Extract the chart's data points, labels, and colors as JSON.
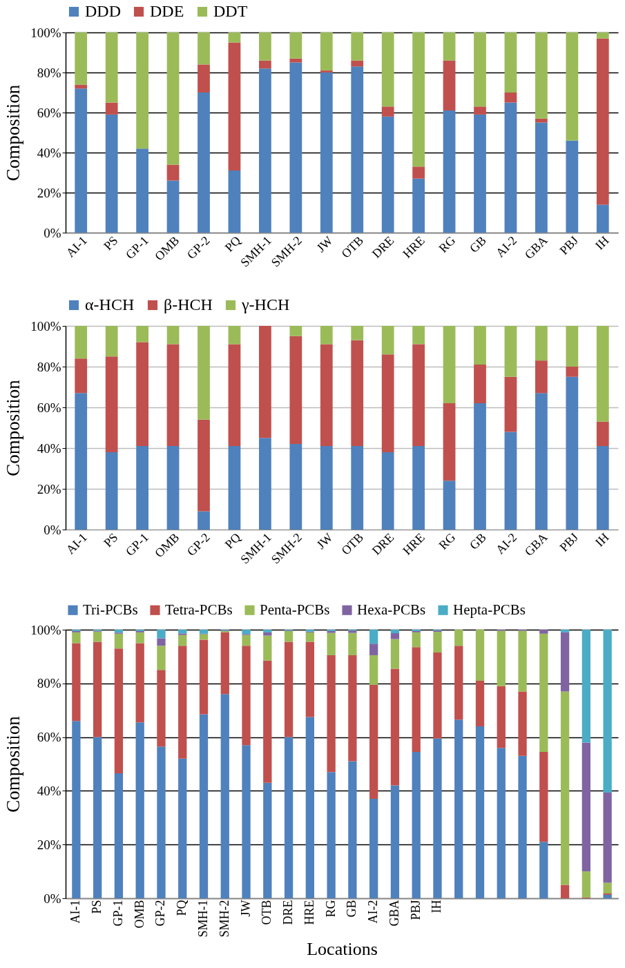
{
  "chart_data": [
    {
      "type": "bar",
      "stacked": true,
      "ylabel": "Composition",
      "legend": "top",
      "grid": "y",
      "categories": [
        "AI-1",
        "PS",
        "GP-1",
        "OMB",
        "GP-2",
        "PQ",
        "SMH-1",
        "SMH-2",
        "JW",
        "OTB",
        "DRE",
        "HRE",
        "RG",
        "GB",
        "AI-2",
        "GBA",
        "PBJ",
        "IH"
      ],
      "ylim": [
        0,
        100
      ],
      "yticks": [
        {
          "value": 0,
          "label": "0%"
        },
        {
          "value": 20,
          "label": "20%"
        },
        {
          "value": 40,
          "label": "40%"
        },
        {
          "value": 60,
          "label": "60%"
        },
        {
          "value": 80,
          "label": "80%"
        },
        {
          "value": 100,
          "label": "100%"
        }
      ],
      "series": [
        {
          "name": "DDD",
          "color": "#4f81bd",
          "values": [
            72,
            59,
            42,
            26,
            70,
            31,
            82,
            85,
            80,
            83,
            58,
            27,
            61,
            59,
            65,
            55,
            46,
            14
          ]
        },
        {
          "name": "DDE",
          "color": "#c0504d",
          "values": [
            2,
            6,
            0,
            8,
            14,
            64,
            4,
            2,
            1,
            3,
            5,
            6,
            25,
            4,
            5,
            2,
            0,
            83
          ]
        },
        {
          "name": "DDT",
          "color": "#9bbb59",
          "values": [
            26,
            35,
            58,
            66,
            16,
            5,
            14,
            13,
            19,
            14,
            37,
            67,
            14,
            37,
            30,
            43,
            54,
            3
          ]
        }
      ]
    },
    {
      "type": "bar",
      "stacked": true,
      "ylabel": "Composition",
      "legend": "top",
      "grid": "y",
      "categories": [
        "AI-1",
        "PS",
        "GP-1",
        "OMB",
        "GP-2",
        "PQ",
        "SMH-1",
        "SMH-2",
        "JW",
        "OTB",
        "DRE",
        "HRE",
        "RG",
        "GB",
        "AI-2",
        "GBA",
        "PBJ",
        "IH"
      ],
      "ylim": [
        0,
        100
      ],
      "yticks": [
        {
          "value": 0,
          "label": "0%"
        },
        {
          "value": 20,
          "label": "20%"
        },
        {
          "value": 40,
          "label": "40%"
        },
        {
          "value": 60,
          "label": "60%"
        },
        {
          "value": 80,
          "label": "80%"
        },
        {
          "value": 100,
          "label": "100%"
        }
      ],
      "series": [
        {
          "name": "α-HCH",
          "color": "#4f81bd",
          "values": [
            67,
            38,
            41,
            41,
            9,
            41,
            45,
            42,
            41,
            41,
            38,
            41,
            24,
            62,
            48,
            67,
            75,
            41
          ]
        },
        {
          "name": "β-HCH",
          "color": "#c0504d",
          "values": [
            17,
            47,
            51,
            50,
            45,
            50,
            55,
            53,
            50,
            52,
            48,
            50,
            38,
            19,
            27,
            16,
            5,
            12
          ]
        },
        {
          "name": "γ-HCH",
          "color": "#9bbb59",
          "values": [
            16,
            15,
            8,
            9,
            46,
            9,
            0,
            5,
            9,
            7,
            14,
            9,
            38,
            19,
            25,
            17,
            20,
            47
          ]
        }
      ]
    },
    {
      "type": "bar",
      "stacked": true,
      "ylabel": "Composition",
      "xlabel": "Locations",
      "legend": "top",
      "grid": "y",
      "categories": [
        "AI-1",
        "PS",
        "GP-1",
        "OMB",
        "GP-2",
        "PQ",
        "SMH-1",
        "SMH-2",
        "JW",
        "OTB",
        "DRE",
        "HRE",
        "RG",
        "GB",
        "AI-2",
        "GBA",
        "PBJ",
        "IH",
        null,
        null,
        null,
        null,
        null,
        null,
        null,
        null
      ],
      "ylim": [
        0,
        100
      ],
      "yticks": [
        {
          "value": 0,
          "label": "0%"
        },
        {
          "value": 20,
          "label": "20%"
        },
        {
          "value": 40,
          "label": "40%"
        },
        {
          "value": 60,
          "label": "60%"
        },
        {
          "value": 80,
          "label": "80%"
        },
        {
          "value": 100,
          "label": "100%"
        }
      ],
      "series": [
        {
          "name": "Tri-PCBs",
          "color": "#4f81bd",
          "values": [
            66,
            60,
            46.5,
            65.5,
            56.5,
            52,
            68.5,
            76,
            57,
            43,
            60,
            67.5,
            47,
            51,
            37,
            42,
            54.5,
            59.5,
            66.5,
            64,
            56,
            53,
            21,
            0,
            0,
            1.3
          ]
        },
        {
          "name": "Tetra-PCBs",
          "color": "#c0504d",
          "values": [
            29,
            35.5,
            46.5,
            29.5,
            28.5,
            42,
            27.8,
            23,
            37,
            45.5,
            35.5,
            28,
            43.5,
            39.5,
            42.5,
            43.5,
            39,
            32,
            27.5,
            17,
            23,
            24,
            33.5,
            5,
            0.3,
            0.5
          ]
        },
        {
          "name": "Penta-PCBs",
          "color": "#9bbb59",
          "values": [
            4,
            3.8,
            5.5,
            4,
            9,
            4,
            2,
            0.5,
            4,
            9.3,
            4,
            3.5,
            8.3,
            8.3,
            11,
            11,
            5.5,
            7.7,
            6,
            19,
            20.6,
            22.6,
            44,
            72,
            9.7,
            4
          ]
        },
        {
          "name": "Hexa-PCBs",
          "color": "#8064a2",
          "values": [
            0.5,
            0.3,
            0.4,
            0.5,
            2.8,
            0.6,
            0.2,
            0.2,
            0.4,
            1.2,
            0.2,
            0.3,
            0.7,
            0.9,
            4.3,
            2.2,
            0.5,
            0.5,
            0,
            0,
            0.4,
            0.4,
            1.5,
            22,
            48,
            33.5
          ]
        },
        {
          "name": "Hepta-PCBs",
          "color": "#4bacc6",
          "values": [
            0.5,
            0.4,
            1.1,
            0.5,
            3.2,
            1.4,
            1.5,
            0.3,
            1.6,
            1,
            0.3,
            0.7,
            0.5,
            0.3,
            5.2,
            1.3,
            0.5,
            0.3,
            0,
            0,
            0,
            0,
            0,
            1,
            42,
            60.7
          ]
        }
      ]
    }
  ]
}
